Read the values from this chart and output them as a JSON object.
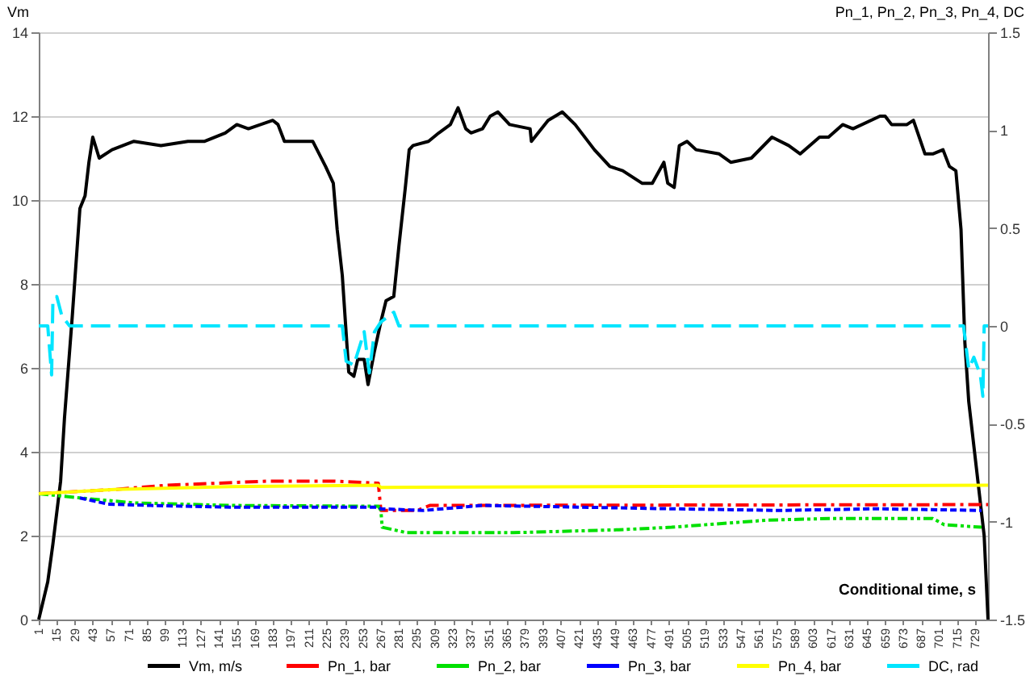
{
  "chart_data": {
    "type": "line",
    "xlabel": "Conditional time, s",
    "ylabel": "Vm",
    "y2label": "Pn_1, Pn_2, Pn_3, Pn_4, DC",
    "xlim": [
      1,
      739
    ],
    "xticks": [
      1,
      15,
      29,
      43,
      57,
      71,
      85,
      99,
      113,
      127,
      141,
      155,
      169,
      183,
      197,
      211,
      225,
      239,
      253,
      267,
      281,
      295,
      309,
      323,
      337,
      351,
      365,
      379,
      393,
      407,
      421,
      435,
      449,
      463,
      477,
      491,
      505,
      519,
      533,
      547,
      561,
      575,
      589,
      603,
      617,
      631,
      645,
      659,
      673,
      687,
      701,
      715,
      729
    ],
    "ylim": [
      0,
      14
    ],
    "yticks": [
      0,
      2,
      4,
      6,
      8,
      10,
      12,
      14
    ],
    "y2lim": [
      -1.5,
      1.5
    ],
    "y2ticks": [
      -1.5,
      -1,
      -0.5,
      0,
      0.5,
      1,
      1.5
    ],
    "grid": "y",
    "legend": "bottom",
    "marker": "none",
    "series": [
      {
        "name": "Vm, m/s",
        "color": "#000000",
        "line_style": "solid",
        "x": [
          1,
          8,
          12,
          18,
          21,
          25,
          27,
          33,
          37,
          40,
          43,
          48,
          58,
          75,
          96,
          117,
          130,
          146,
          155,
          164,
          183,
          187,
          192,
          204,
          214,
          224,
          230,
          233,
          237,
          242,
          246,
          249,
          254,
          257,
          262,
          267,
          271,
          277,
          281,
          286,
          289,
          292,
          304,
          312,
          321,
          327,
          333,
          337,
          346,
          352,
          358,
          367,
          383,
          384,
          397,
          408,
          418,
          433,
          445,
          455,
          470,
          478,
          487,
          490,
          495,
          499,
          505,
          512,
          530,
          539,
          555,
          571,
          584,
          593,
          608,
          615,
          626,
          634,
          655,
          659,
          664,
          676,
          681,
          690,
          696,
          704,
          709,
          714,
          718,
          721,
          724,
          730,
          736,
          739
        ],
        "values": [
          0,
          0.9,
          1.8,
          3.3,
          4.8,
          6.4,
          7.2,
          9.8,
          10.1,
          10.9,
          11.5,
          11.0,
          11.2,
          11.4,
          11.3,
          11.4,
          11.4,
          11.6,
          11.8,
          11.7,
          11.9,
          11.8,
          11.4,
          11.4,
          11.4,
          10.8,
          10.4,
          9.3,
          8.2,
          5.9,
          5.8,
          6.2,
          6.2,
          5.6,
          6.4,
          7.1,
          7.6,
          7.7,
          8.9,
          10.3,
          11.2,
          11.3,
          11.4,
          11.6,
          11.8,
          12.2,
          11.7,
          11.6,
          11.7,
          12.0,
          12.1,
          11.8,
          11.7,
          11.4,
          11.9,
          12.1,
          11.8,
          11.2,
          10.8,
          10.7,
          10.4,
          10.4,
          10.9,
          10.4,
          10.3,
          11.3,
          11.4,
          11.2,
          11.1,
          10.9,
          11.0,
          11.5,
          11.3,
          11.1,
          11.5,
          11.5,
          11.8,
          11.7,
          12.0,
          12.0,
          11.8,
          11.8,
          11.9,
          11.1,
          11.1,
          11.2,
          10.8,
          10.7,
          9.3,
          6.6,
          5.2,
          3.6,
          2.0,
          0
        ]
      },
      {
        "name": "Pn_1, bar",
        "color": "#ff0000",
        "line_style": "dashed",
        "x": [
          1,
          60,
          100,
          180,
          230,
          265,
          267,
          295,
          305,
          739
        ],
        "values": [
          3.0,
          3.1,
          3.2,
          3.3,
          3.3,
          3.25,
          2.6,
          2.6,
          2.72,
          2.74
        ]
      },
      {
        "name": "Pn_2, bar",
        "color": "#00e000",
        "line_style": "dashed",
        "x": [
          1,
          33,
          75,
          150,
          265,
          267,
          268,
          287,
          370,
          452,
          493,
          568,
          618,
          696,
          705,
          734
        ],
        "values": [
          3.0,
          2.9,
          2.78,
          2.72,
          2.7,
          2.6,
          2.2,
          2.07,
          2.07,
          2.14,
          2.2,
          2.37,
          2.41,
          2.41,
          2.26,
          2.2
        ]
      },
      {
        "name": "Pn_3, bar",
        "color": "#0000ff",
        "line_style": "dashed",
        "x": [
          33,
          55,
          88,
          150,
          265,
          267,
          300,
          346,
          493,
          577,
          652,
          734
        ],
        "values": [
          2.9,
          2.75,
          2.72,
          2.68,
          2.68,
          2.64,
          2.6,
          2.72,
          2.64,
          2.6,
          2.64,
          2.6
        ]
      },
      {
        "name": "Pn_4, bar",
        "color": "#ffff00",
        "line_style": "solid",
        "x": [
          1,
          60,
          150,
          265,
          267,
          739
        ],
        "values": [
          3.0,
          3.1,
          3.17,
          3.2,
          3.15,
          3.2
        ]
      },
      {
        "name": "DC, rad",
        "color": "#00e5ff",
        "line_style": "dashed",
        "axis": "y2",
        "x": [
          1,
          8,
          11,
          12,
          15,
          19,
          25,
          237,
          240,
          246,
          254,
          258,
          262,
          267,
          277,
          281,
          720,
          724,
          728,
          733,
          735,
          736,
          739
        ],
        "values": [
          0,
          0,
          -0.25,
          0.13,
          0.15,
          0.05,
          0,
          0,
          -0.18,
          -0.2,
          -0.03,
          -0.24,
          -0.03,
          0.02,
          0.07,
          0,
          0,
          -0.22,
          -0.16,
          -0.25,
          -0.36,
          0,
          0
        ]
      }
    ]
  }
}
